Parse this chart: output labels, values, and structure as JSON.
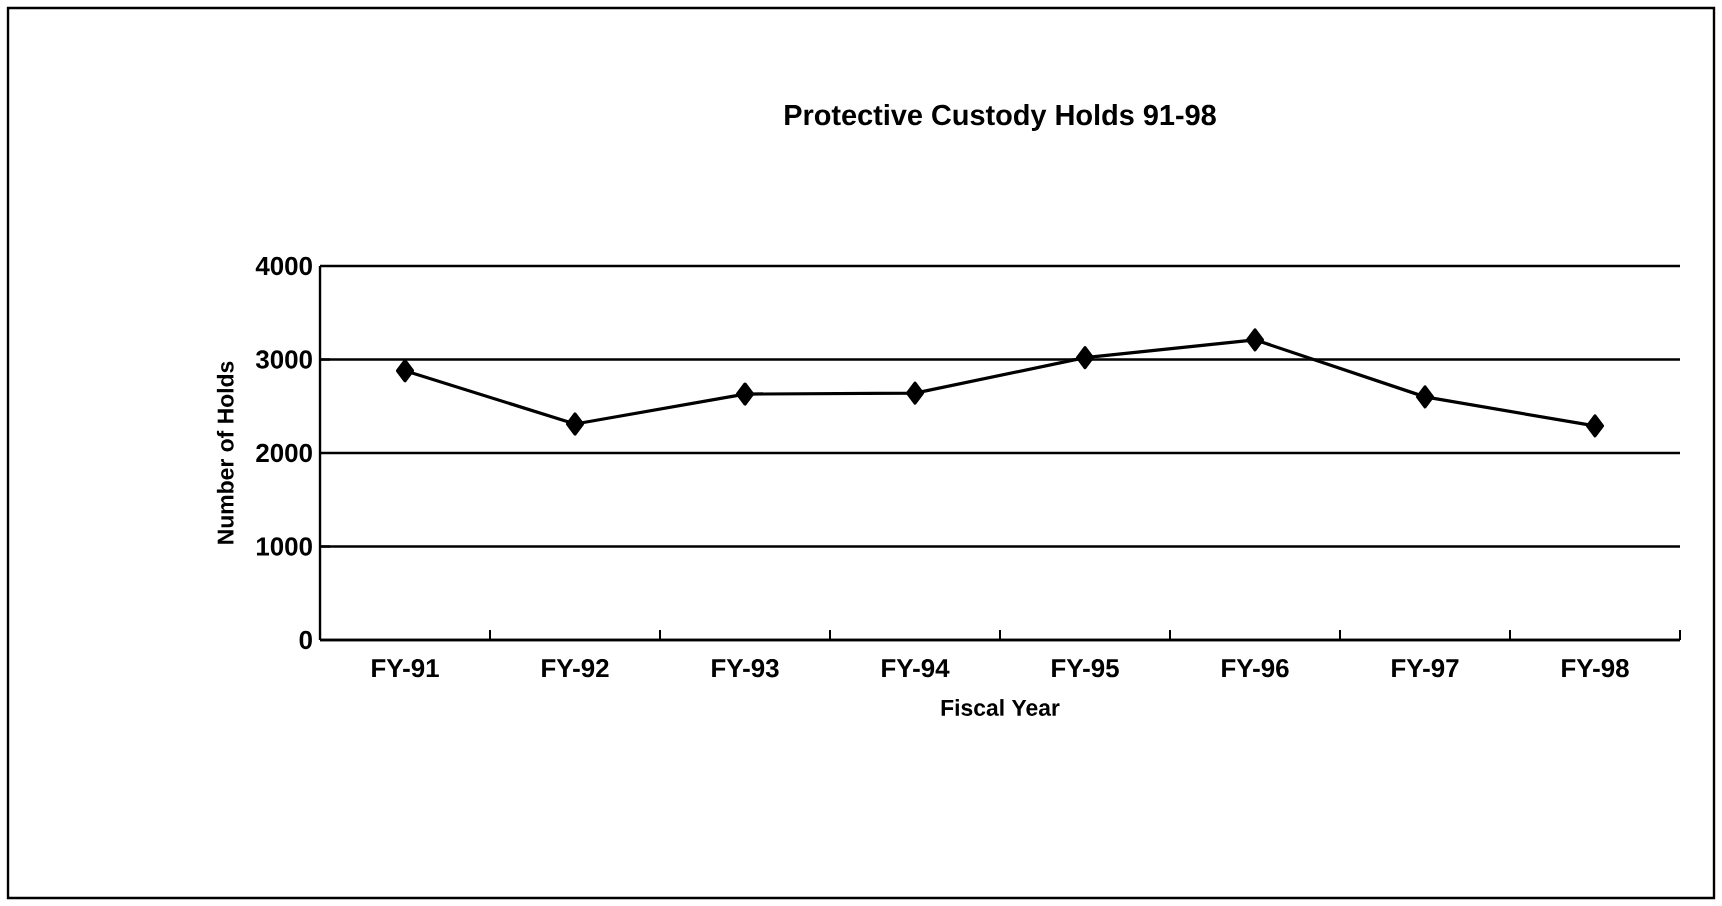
{
  "chart_data": {
    "type": "line",
    "title": "Protective Custody Holds 91-98",
    "xlabel": "Fiscal Year",
    "ylabel": "Number of Holds",
    "categories": [
      "FY-91",
      "FY-92",
      "FY-93",
      "FY-94",
      "FY-95",
      "FY-96",
      "FY-97",
      "FY-98"
    ],
    "series": [
      {
        "color": "#000000",
        "values": [
          2880,
          2310,
          2630,
          2640,
          3020,
          3210,
          2600,
          2290
        ]
      }
    ],
    "ylim": [
      0,
      4000
    ],
    "yticks": [
      0,
      1000,
      2000,
      3000,
      4000
    ],
    "grid": "y",
    "marker": "diamond",
    "line_style": "solid",
    "legend": false
  }
}
